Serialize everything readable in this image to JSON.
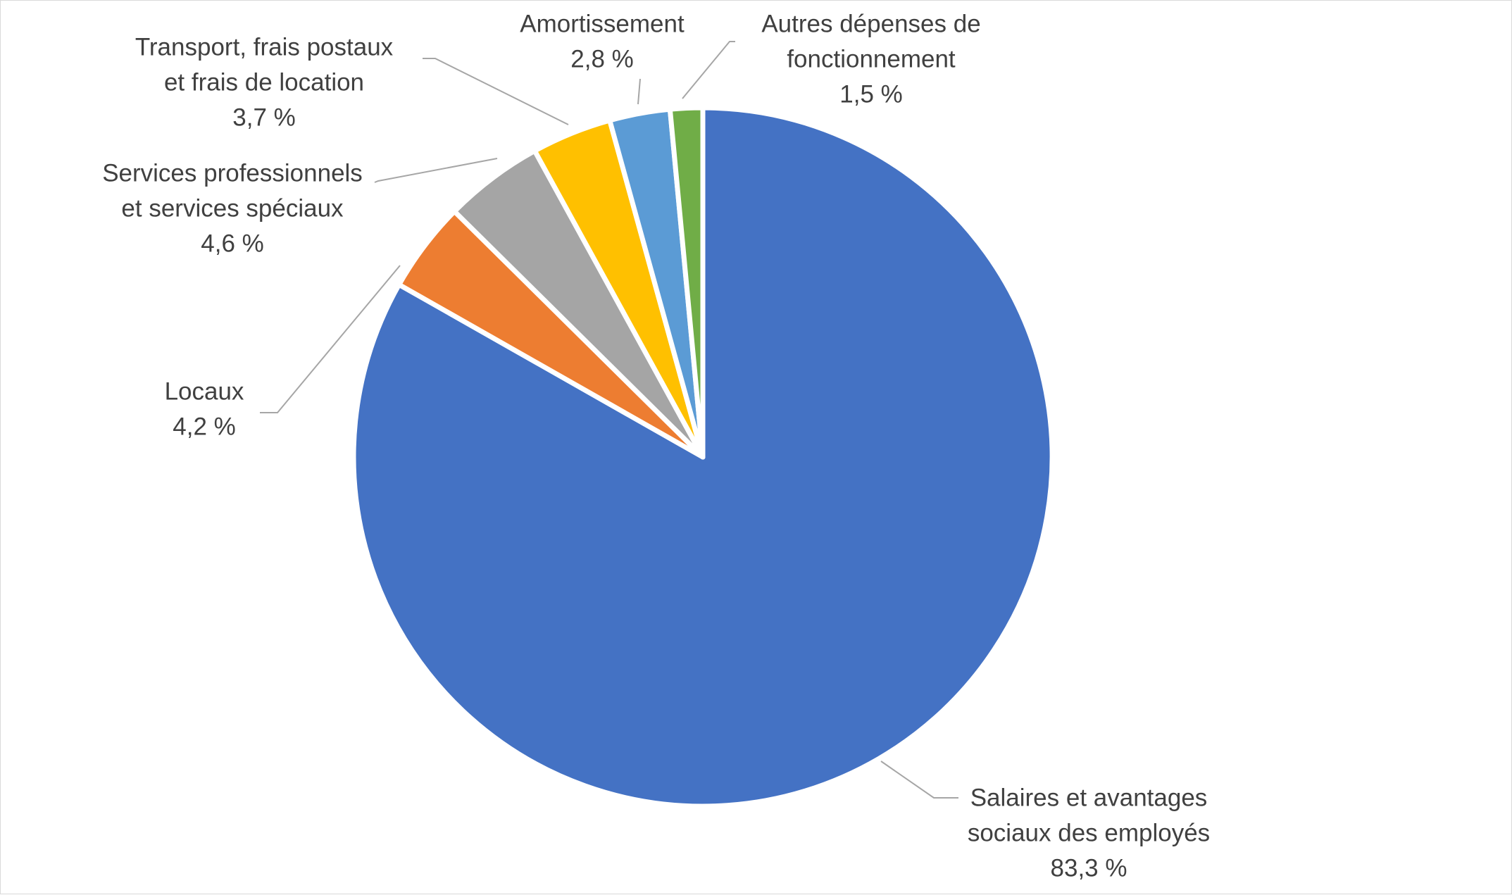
{
  "chart_data": {
    "type": "pie",
    "title": "",
    "categories": [
      "Salaires et avantages sociaux des employés",
      "Locaux",
      "Services professionnels et services spéciaux",
      "Transport, frais postaux et frais de location",
      "Amortissement",
      "Autres dépenses de fonctionnement"
    ],
    "values": [
      83.3,
      4.2,
      4.6,
      3.7,
      2.8,
      1.5
    ],
    "value_labels": [
      "83,3 %",
      "4,2 %",
      "4,6 %",
      "3,7 %",
      "2,8 %",
      "1,5 %"
    ],
    "label_lines": [
      [
        "Salaires et avantages",
        "sociaux des employés"
      ],
      [
        "Locaux"
      ],
      [
        "Services professionnels",
        "et services spéciaux"
      ],
      [
        "Transport, frais postaux",
        "et frais de location"
      ],
      [
        "Amortissement"
      ],
      [
        "Autres dépenses de",
        "fonctionnement"
      ]
    ],
    "colors": [
      "#4472C4",
      "#ED7D31",
      "#A5A5A5",
      "#FFC000",
      "#5B9BD5",
      "#70AD47"
    ],
    "start_angle_deg": 0,
    "direction": "clockwise",
    "legend": "none",
    "data_labels": "outside-with-leader-lines"
  }
}
